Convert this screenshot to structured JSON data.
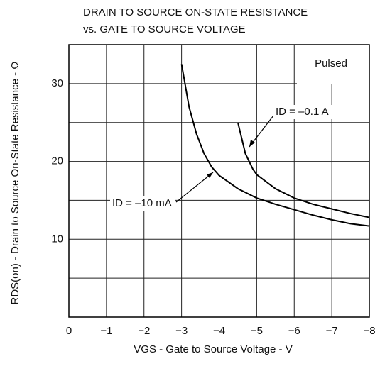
{
  "chart_data": {
    "type": "line",
    "title": [
      "DRAIN TO SOURCE ON-STATE RESISTANCE",
      "vs. GATE TO SOURCE VOLTAGE"
    ],
    "x_label": "VGS - Gate to Source Voltage - V",
    "y_label": "RDS(on) - Drain to Source On-State Resistance - Ω",
    "annotation": "Pulsed",
    "xlim": [
      0,
      -8
    ],
    "ylim": [
      0,
      35
    ],
    "xticks": [
      0,
      {
        "value": -1,
        "label": "−1"
      },
      {
        "value": -2,
        "label": "−2"
      },
      {
        "value": -3,
        "label": "−3"
      },
      {
        "value": -4,
        "label": "−4"
      },
      {
        "value": -5,
        "label": "−5"
      },
      {
        "value": -6,
        "label": "−6"
      },
      {
        "value": -7,
        "label": "−7"
      },
      {
        "value": -8,
        "label": "−8"
      }
    ],
    "yticks": [
      10,
      20,
      30
    ],
    "ygrid": [
      5,
      10,
      15,
      20,
      25,
      30
    ],
    "grid": true,
    "series": [
      {
        "name": "ID = –10 mA",
        "color": "#000000",
        "x": [
          -3,
          -3.2,
          -3.4,
          -3.6,
          -3.8,
          -4,
          -4.5,
          -5,
          -5.5,
          -6,
          -6.5,
          -7,
          -7.5,
          -8
        ],
        "values": [
          32.5,
          27,
          23.5,
          21,
          19.3,
          18.2,
          16.5,
          15.3,
          14.5,
          13.8,
          13.1,
          12.5,
          12,
          11.7
        ]
      },
      {
        "name": "ID = –0.1 A",
        "color": "#000000",
        "x": [
          -4.5,
          -4.7,
          -4.9,
          -5,
          -5.5,
          -6,
          -6.5,
          -7,
          -7.5,
          -8
        ],
        "values": [
          25,
          21,
          19,
          18.3,
          16.5,
          15.3,
          14.5,
          13.9,
          13.3,
          12.8
        ]
      }
    ]
  }
}
